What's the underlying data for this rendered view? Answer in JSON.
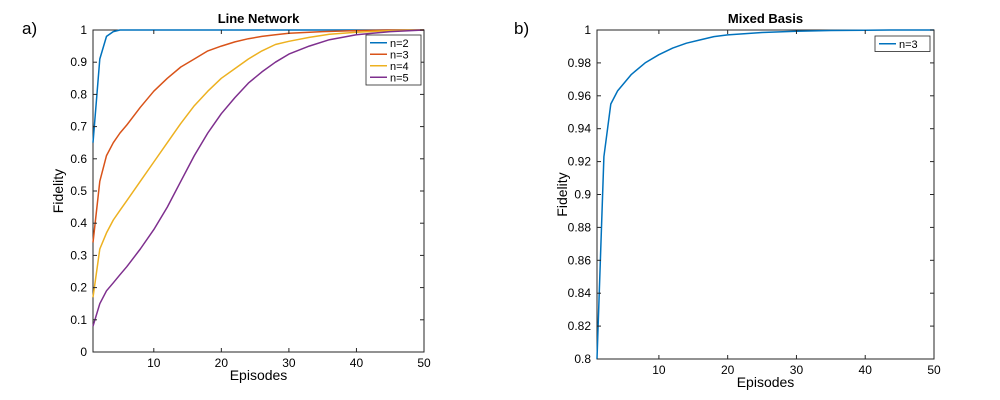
{
  "chart_data": [
    {
      "panel_label": "a)",
      "type": "line",
      "title": "Line Network",
      "xlabel": "Episodes",
      "ylabel": "Fidelity",
      "xlim": [
        1,
        50
      ],
      "ylim": [
        0,
        1
      ],
      "xticks": [
        10,
        20,
        30,
        40,
        50
      ],
      "yticks": [
        0,
        0.1,
        0.2,
        0.3,
        0.4,
        0.5,
        0.6,
        0.7,
        0.8,
        0.9,
        1
      ],
      "ytick_labels": [
        "0",
        "0.1",
        "0.2",
        "0.3",
        "0.4",
        "0.5",
        "0.6",
        "0.7",
        "0.8",
        "0.9",
        "1"
      ],
      "grid": false,
      "legend_position": "top-right",
      "series": [
        {
          "name": "n=2",
          "color": "#0072BD",
          "x": [
            1,
            2,
            3,
            4,
            5,
            6,
            8,
            10,
            50
          ],
          "y": [
            0.65,
            0.91,
            0.98,
            0.995,
            1.0,
            1.0,
            1.0,
            1.0,
            1.0
          ]
        },
        {
          "name": "n=3",
          "color": "#D95319",
          "x": [
            1,
            2,
            3,
            4,
            5,
            6,
            8,
            10,
            12,
            14,
            16,
            18,
            20,
            22,
            24,
            26,
            28,
            30,
            35,
            40,
            45,
            50
          ],
          "y": [
            0.34,
            0.53,
            0.61,
            0.65,
            0.68,
            0.705,
            0.76,
            0.81,
            0.85,
            0.885,
            0.91,
            0.935,
            0.95,
            0.963,
            0.973,
            0.98,
            0.985,
            0.99,
            0.995,
            0.998,
            1.0,
            1.0
          ]
        },
        {
          "name": "n=4",
          "color": "#EDB120",
          "x": [
            1,
            2,
            3,
            4,
            5,
            6,
            8,
            10,
            12,
            14,
            16,
            18,
            20,
            22,
            24,
            26,
            28,
            30,
            33,
            36,
            40,
            45,
            50
          ],
          "y": [
            0.17,
            0.32,
            0.37,
            0.41,
            0.44,
            0.47,
            0.53,
            0.59,
            0.65,
            0.71,
            0.765,
            0.81,
            0.85,
            0.88,
            0.91,
            0.935,
            0.955,
            0.965,
            0.977,
            0.987,
            0.993,
            0.998,
            1.0
          ]
        },
        {
          "name": "n=5",
          "color": "#7E2F8E",
          "x": [
            1,
            2,
            3,
            4,
            5,
            6,
            8,
            10,
            12,
            14,
            16,
            18,
            20,
            22,
            24,
            26,
            28,
            30,
            33,
            36,
            40,
            45,
            50
          ],
          "y": [
            0.08,
            0.15,
            0.19,
            0.215,
            0.24,
            0.265,
            0.32,
            0.38,
            0.45,
            0.53,
            0.61,
            0.68,
            0.74,
            0.79,
            0.835,
            0.87,
            0.9,
            0.925,
            0.95,
            0.97,
            0.985,
            0.995,
            1.0
          ]
        }
      ]
    },
    {
      "panel_label": "b)",
      "type": "line",
      "title": "Mixed Basis",
      "xlabel": "Episodes",
      "ylabel": "Fidelity",
      "xlim": [
        1,
        50
      ],
      "ylim": [
        0.8,
        1
      ],
      "xticks": [
        10,
        20,
        30,
        40,
        50
      ],
      "yticks": [
        0.8,
        0.82,
        0.84,
        0.86,
        0.88,
        0.9,
        0.92,
        0.94,
        0.96,
        0.98,
        1
      ],
      "ytick_labels": [
        "0.8",
        "0.82",
        "0.84",
        "0.86",
        "0.88",
        "0.9",
        "0.92",
        "0.94",
        "0.96",
        "0.98",
        "1"
      ],
      "grid": false,
      "legend_position": "top-right",
      "series": [
        {
          "name": "n=3",
          "color": "#0072BD",
          "x": [
            1,
            2,
            3,
            4,
            5,
            6,
            8,
            10,
            12,
            14,
            16,
            18,
            20,
            25,
            30,
            35,
            40,
            45,
            50
          ],
          "y": [
            0.8,
            0.923,
            0.955,
            0.963,
            0.968,
            0.973,
            0.98,
            0.985,
            0.989,
            0.992,
            0.994,
            0.996,
            0.997,
            0.9985,
            0.9993,
            0.9997,
            0.9999,
            1.0,
            1.0
          ]
        }
      ]
    }
  ]
}
